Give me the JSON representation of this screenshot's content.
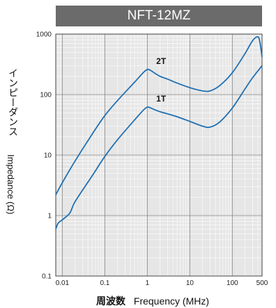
{
  "chart_data": {
    "type": "line",
    "title": "NFT-12MZ",
    "ylabel_jp": "インピーダンス",
    "ylabel_en": "Impedance (Ω)",
    "xlabel_jp": "周波数",
    "xlabel_en": "Frequency (MHz)",
    "x_scale": "log",
    "y_scale": "log",
    "xlim": [
      0.007,
      500
    ],
    "ylim": [
      0.1,
      1000
    ],
    "x_ticks": [
      "0.01",
      "0.1",
      "1",
      "10",
      "100",
      "500"
    ],
    "y_ticks": [
      "1000",
      "100",
      "10",
      "1",
      "0.1"
    ],
    "grid": true,
    "series": [
      {
        "name": "2T",
        "color": "#1f6fb2",
        "x": [
          0.007,
          0.01,
          0.02,
          0.05,
          0.1,
          0.2,
          0.5,
          0.8,
          1.0,
          1.2,
          1.5,
          2,
          3,
          5,
          10,
          20,
          30,
          50,
          100,
          200,
          300,
          400,
          450,
          500
        ],
        "y": [
          2.2,
          3.5,
          8,
          22,
          45,
          80,
          160,
          230,
          260,
          250,
          225,
          200,
          180,
          155,
          130,
          115,
          115,
          140,
          230,
          480,
          780,
          900,
          700,
          420
        ]
      },
      {
        "name": "1T",
        "color": "#1f6fb2",
        "x": [
          0.007,
          0.008,
          0.01,
          0.015,
          0.02,
          0.05,
          0.1,
          0.2,
          0.5,
          0.8,
          1.0,
          1.2,
          1.5,
          2,
          3,
          5,
          10,
          20,
          30,
          50,
          100,
          200,
          300,
          500
        ],
        "y": [
          0.6,
          0.75,
          0.85,
          1.1,
          1.7,
          4.5,
          9.5,
          18,
          38,
          55,
          62,
          60,
          56,
          52,
          48,
          43,
          36,
          30,
          29,
          35,
          60,
          125,
          190,
          300
        ]
      }
    ]
  }
}
